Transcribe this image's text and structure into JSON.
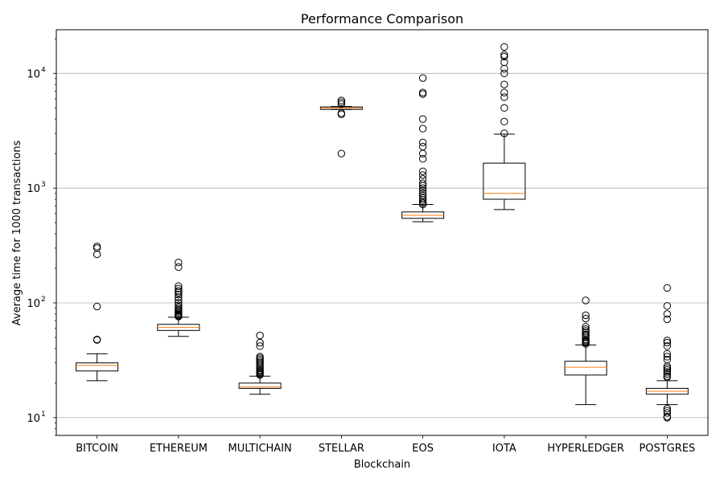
{
  "chart_data": {
    "type": "boxplot",
    "title": "Performance Comparison",
    "xlabel": "Blockchain",
    "ylabel": "Average time for 1000 transactions",
    "yscale": "log",
    "ylim": [
      7,
      24000
    ],
    "yticks": [
      {
        "value": 10,
        "label": "10",
        "exp": "1"
      },
      {
        "value": 100,
        "label": "10",
        "exp": "2"
      },
      {
        "value": 1000,
        "label": "10",
        "exp": "3"
      },
      {
        "value": 10000,
        "label": "10",
        "exp": "4"
      }
    ],
    "grid": "horizontal",
    "categories": [
      "BITCOIN",
      "ETHEREUM",
      "MULTICHAIN",
      "STELLAR",
      "EOS",
      "IOTA",
      "HYPERLEDGER",
      "POSTGRES"
    ],
    "boxes": [
      {
        "whislo": 21,
        "q1": 25.5,
        "med": 28.5,
        "q3": 30,
        "whishi": 36,
        "fliers": [
          310,
          300,
          265,
          93,
          48,
          47.5
        ]
      },
      {
        "whislo": 51,
        "q1": 57.5,
        "med": 61,
        "q3": 65,
        "whishi": 75,
        "fliers": [
          225,
          205,
          140,
          133,
          127,
          123,
          118,
          112,
          106,
          100,
          95,
          91,
          88,
          86,
          84,
          82,
          80,
          79,
          78,
          77,
          76
        ]
      },
      {
        "whislo": 16,
        "q1": 18,
        "med": 18.5,
        "q3": 20,
        "whishi": 23,
        "fliers": [
          52,
          45,
          42,
          34,
          33,
          32,
          31,
          30,
          29,
          28,
          27,
          26,
          25.5,
          25,
          24.5,
          24,
          23.5
        ]
      },
      {
        "whislo": 4850,
        "q1": 4850,
        "med": 5000,
        "q3": 5100,
        "whishi": 5150,
        "fliers": [
          5800,
          5600,
          5400,
          4500,
          4400,
          2000
        ]
      },
      {
        "whislo": 510,
        "q1": 545,
        "med": 580,
        "q3": 620,
        "whishi": 720,
        "fliers": [
          9100,
          6800,
          6600,
          4000,
          3300,
          2500,
          2300,
          2000,
          1800,
          1400,
          1300,
          1200,
          1100,
          1050,
          1000,
          950,
          900,
          860,
          820,
          790,
          760,
          740,
          720
        ]
      },
      {
        "whislo": 650,
        "q1": 800,
        "med": 900,
        "q3": 1650,
        "whishi": 2950,
        "fliers": [
          17000,
          14500,
          14000,
          12500,
          11000,
          10000,
          8000,
          6800,
          6200,
          5000,
          3800,
          3000
        ]
      },
      {
        "whislo": 13,
        "q1": 23.5,
        "med": 27.5,
        "q3": 31,
        "whishi": 43,
        "fliers": [
          105,
          78,
          73,
          62,
          59,
          57,
          55,
          53,
          52,
          50,
          48,
          47,
          46,
          45,
          44
        ]
      },
      {
        "whislo": 13,
        "q1": 16,
        "med": 17,
        "q3": 18,
        "whishi": 21,
        "fliers": [
          135,
          94,
          80,
          72,
          47,
          45,
          42,
          36,
          34,
          32,
          28,
          27,
          26,
          25,
          24,
          23,
          22.5,
          12,
          11.5,
          11,
          10,
          10.2
        ]
      }
    ]
  }
}
